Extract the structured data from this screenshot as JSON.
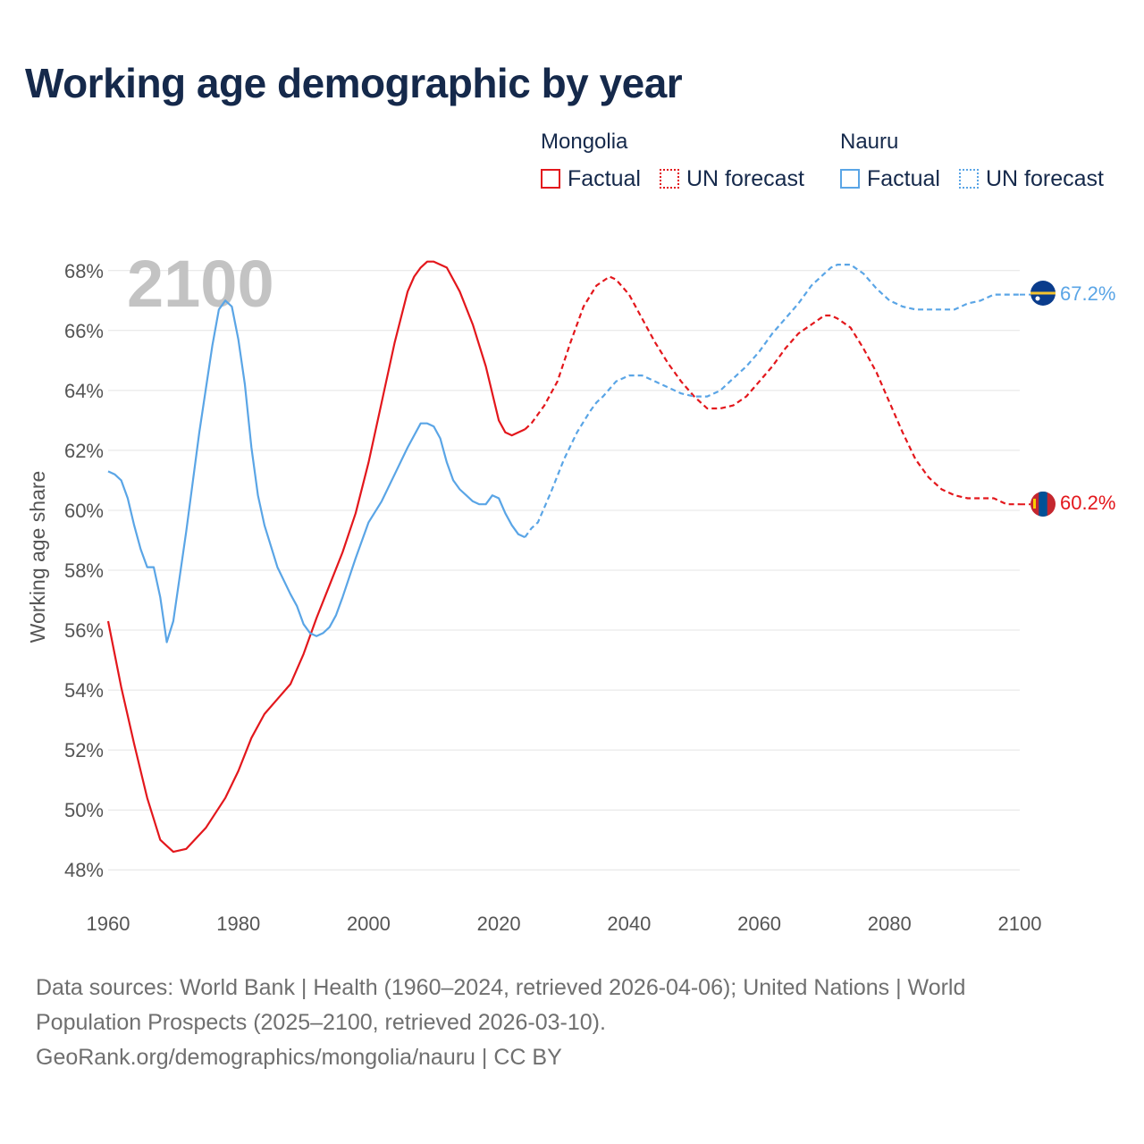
{
  "title": "Working age demographic by year",
  "legend": {
    "groups": [
      {
        "country": "Mongolia",
        "color": "#e3171c",
        "factual_label": "Factual",
        "forecast_label": "UN forecast"
      },
      {
        "country": "Nauru",
        "color": "#5aa5e6",
        "factual_label": "Factual",
        "forecast_label": "UN forecast"
      }
    ]
  },
  "year_watermark": "2100",
  "end_labels": {
    "mongolia": "60.2%",
    "nauru": "67.2%"
  },
  "icons": {
    "mongolia": "mongolia-flag-icon",
    "nauru": "nauru-flag-icon"
  },
  "source": {
    "line1": "Data sources: World Bank | Health (1960–2024, retrieved 2026-04-06); United Nations | World",
    "line2": "Population Prospects (2025–2100, retrieved 2026-03-10).",
    "line3": "GeoRank.org/demographics/mongolia/nauru | CC BY"
  },
  "chart_data": {
    "type": "line",
    "title": "Working age demographic by year",
    "xlabel": "",
    "ylabel": "Working age share",
    "xlim": [
      1960,
      2100
    ],
    "ylim": [
      47.5,
      68.5
    ],
    "xticks": [
      1960,
      1980,
      2000,
      2020,
      2040,
      2060,
      2080,
      2100
    ],
    "yticks": [
      48,
      50,
      52,
      54,
      56,
      58,
      60,
      62,
      64,
      66,
      68
    ],
    "ytick_labels": [
      "48%",
      "50%",
      "52%",
      "54%",
      "56%",
      "58%",
      "60%",
      "62%",
      "64%",
      "66%",
      "68%"
    ],
    "grid": true,
    "factual_end_year": 2024,
    "series": [
      {
        "name": "Mongolia",
        "color": "#e3171c",
        "x": [
          1960,
          1961,
          1962,
          1964,
          1966,
          1968,
          1969,
          1970,
          1972,
          1975,
          1978,
          1980,
          1982,
          1984,
          1986,
          1988,
          1990,
          1992,
          1994,
          1996,
          1998,
          2000,
          2002,
          2004,
          2006,
          2007,
          2008,
          2009,
          2010,
          2012,
          2014,
          2016,
          2018,
          2020,
          2021,
          2022,
          2023,
          2024,
          2025,
          2027,
          2029,
          2031,
          2033,
          2035,
          2037,
          2038,
          2040,
          2042,
          2044,
          2046,
          2048,
          2050,
          2052,
          2054,
          2056,
          2058,
          2060,
          2062,
          2064,
          2066,
          2068,
          2070,
          2071,
          2072,
          2074,
          2076,
          2078,
          2080,
          2082,
          2084,
          2086,
          2088,
          2090,
          2092,
          2094,
          2096,
          2098,
          2100
        ],
        "y": [
          56.3,
          55.2,
          54.1,
          52.2,
          50.4,
          49.0,
          48.8,
          48.6,
          48.7,
          49.4,
          50.4,
          51.3,
          52.4,
          53.2,
          53.7,
          54.2,
          55.2,
          56.4,
          57.5,
          58.6,
          59.9,
          61.6,
          63.6,
          65.6,
          67.3,
          67.8,
          68.1,
          68.3,
          68.3,
          68.1,
          67.3,
          66.2,
          64.8,
          63.0,
          62.6,
          62.5,
          62.6,
          62.7,
          62.9,
          63.5,
          64.3,
          65.6,
          66.8,
          67.5,
          67.8,
          67.7,
          67.2,
          66.4,
          65.6,
          64.9,
          64.3,
          63.8,
          63.4,
          63.4,
          63.5,
          63.8,
          64.3,
          64.8,
          65.4,
          65.9,
          66.2,
          66.5,
          66.5,
          66.4,
          66.1,
          65.4,
          64.6,
          63.6,
          62.6,
          61.7,
          61.1,
          60.7,
          60.5,
          60.4,
          60.4,
          60.4,
          60.2,
          60.2
        ]
      },
      {
        "name": "Nauru",
        "color": "#5aa5e6",
        "x": [
          1960,
          1961,
          1962,
          1963,
          1964,
          1965,
          1966,
          1967,
          1968,
          1969,
          1970,
          1972,
          1974,
          1976,
          1977,
          1978,
          1979,
          1980,
          1981,
          1982,
          1983,
          1984,
          1986,
          1988,
          1989,
          1990,
          1991,
          1992,
          1993,
          1994,
          1995,
          1996,
          1998,
          2000,
          2002,
          2004,
          2006,
          2007,
          2008,
          2009,
          2010,
          2011,
          2012,
          2013,
          2014,
          2015,
          2016,
          2017,
          2018,
          2019,
          2020,
          2021,
          2022,
          2023,
          2024,
          2025,
          2026,
          2028,
          2030,
          2032,
          2034,
          2035,
          2036,
          2038,
          2040,
          2042,
          2044,
          2046,
          2048,
          2050,
          2052,
          2054,
          2056,
          2058,
          2060,
          2062,
          2064,
          2066,
          2068,
          2070,
          2071,
          2072,
          2074,
          2076,
          2078,
          2080,
          2082,
          2084,
          2086,
          2088,
          2090,
          2092,
          2094,
          2096,
          2098,
          2100
        ],
        "y": [
          61.3,
          61.2,
          61.0,
          60.4,
          59.5,
          58.7,
          58.1,
          58.1,
          57.1,
          55.6,
          56.3,
          59.3,
          62.6,
          65.5,
          66.7,
          67.0,
          66.8,
          65.7,
          64.2,
          62.1,
          60.5,
          59.5,
          58.1,
          57.2,
          56.8,
          56.2,
          55.9,
          55.8,
          55.9,
          56.1,
          56.5,
          57.1,
          58.4,
          59.6,
          60.3,
          61.2,
          62.1,
          62.5,
          62.9,
          62.9,
          62.8,
          62.4,
          61.6,
          61.0,
          60.7,
          60.5,
          60.3,
          60.2,
          60.2,
          60.5,
          60.4,
          59.9,
          59.5,
          59.2,
          59.1,
          59.4,
          59.6,
          60.6,
          61.7,
          62.6,
          63.3,
          63.6,
          63.8,
          64.3,
          64.5,
          64.5,
          64.3,
          64.1,
          63.9,
          63.8,
          63.8,
          64.0,
          64.4,
          64.8,
          65.3,
          65.9,
          66.4,
          66.9,
          67.5,
          67.9,
          68.1,
          68.2,
          68.2,
          67.9,
          67.4,
          67.0,
          66.8,
          66.7,
          66.7,
          66.7,
          66.7,
          66.9,
          67.0,
          67.2,
          67.2,
          67.2
        ]
      }
    ]
  }
}
